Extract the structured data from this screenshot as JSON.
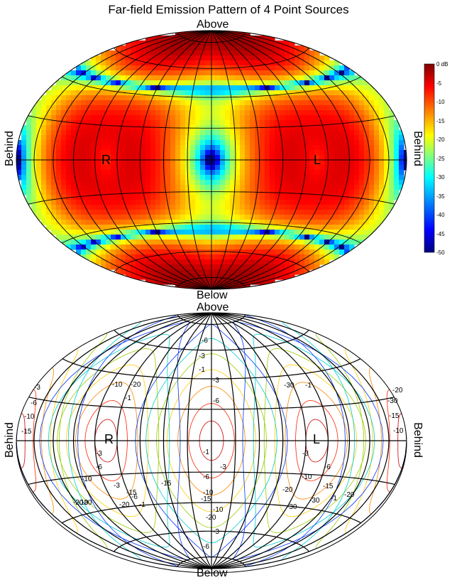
{
  "title": "Far-field Emission Pattern of 4 Point Sources",
  "chart_data": [
    {
      "type": "heatmap",
      "projection": "Hammer-Aitoff",
      "labels": {
        "top": "Above",
        "bottom": "Below",
        "left": "Behind",
        "right": "Behind"
      },
      "sources": [
        {
          "label": "R",
          "longitude": -90,
          "latitude": 0
        },
        {
          "label": "L",
          "longitude": 90,
          "latitude": 0
        }
      ],
      "colorbar": {
        "ticks": [
          "0 dB",
          "-5",
          "-10",
          "-15",
          "-20",
          "-25",
          "-30",
          "-35",
          "-40",
          "-45",
          "-50"
        ],
        "range": [
          -50,
          0
        ],
        "colormap": "jet",
        "stops": [
          "#7f0000",
          "#ff0000",
          "#ffff00",
          "#00ffff",
          "#0000ff",
          "#00007f"
        ]
      },
      "grid": true
    },
    {
      "type": "contour",
      "projection": "Hammer-Aitoff",
      "labels": {
        "top": "Above",
        "bottom": "Below",
        "left": "Behind",
        "right": "Behind"
      },
      "sources": [
        {
          "label": "R",
          "longitude": -90,
          "latitude": 0
        },
        {
          "label": "L",
          "longitude": 90,
          "latitude": 0
        }
      ],
      "levels": [
        -1,
        -3,
        -6,
        -10,
        -15,
        -20,
        -30
      ],
      "level_colors": [
        "#cc0000",
        "#ff2200",
        "#ff8800",
        "#ffcc00",
        "#99cc00",
        "#00cccc",
        "#0033ff"
      ],
      "contour_labels": [
        "-1",
        "-3",
        "-6",
        "-10",
        "-15",
        "-20",
        "-30",
        "-15",
        "-10",
        "-6",
        "-3",
        "-1",
        "-3",
        "-6",
        "-10",
        "-20",
        "-30",
        "-1",
        "-3",
        "-6",
        "-10",
        "-20",
        "-30",
        "-1",
        "-3",
        "-6",
        "-10",
        "-15",
        "-20",
        "-1",
        "-3",
        "-6",
        "-10",
        "-15",
        "-20",
        "-30",
        "-1",
        "-3",
        "-6",
        "-10",
        "-15",
        "-20",
        "-30",
        "-3",
        "-6",
        "-10",
        "-15",
        "-20"
      ],
      "grid": true
    }
  ]
}
